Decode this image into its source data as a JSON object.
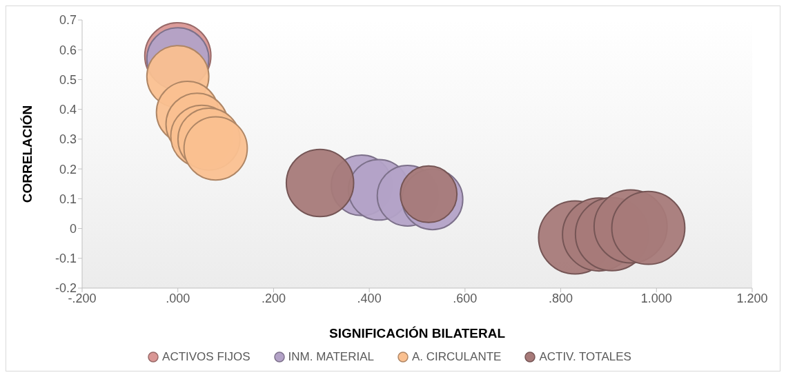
{
  "chart_data": {
    "type": "bubble",
    "xlabel": "SIGNIFICACIÓN BILATERAL",
    "ylabel": "CORRELACIÓN",
    "xlim": [
      -0.2,
      1.2
    ],
    "xticks": [
      {
        "value": -0.2,
        "label": "-.200"
      },
      {
        "value": 0,
        "label": ".000"
      },
      {
        "value": 0.2,
        "label": ".200"
      },
      {
        "value": 0.4,
        "label": ".400"
      },
      {
        "value": 0.6,
        "label": ".600"
      },
      {
        "value": 0.8,
        "label": ".800"
      },
      {
        "value": 1,
        "label": "1.000"
      },
      {
        "value": 1.2,
        "label": "1.200"
      }
    ],
    "ylim": [
      -0.2,
      0.7
    ],
    "yticks": [
      -0.2,
      -0.1,
      0,
      0.1,
      0.2,
      0.3,
      0.4,
      0.5,
      0.6,
      0.7
    ],
    "grid": false,
    "legend": "bottom",
    "series": [
      {
        "name": "ACTIVOS FIJOS",
        "color": "#d99694",
        "x": [
          0.0
        ],
        "values": [
          0.58
        ],
        "sizes": [
          0.82
        ]
      },
      {
        "name": "INM. MATERIAL",
        "color": "#b3a2c7",
        "x": [
          0.0,
          0.384,
          0.42,
          0.48,
          0.532
        ],
        "values": [
          0.57,
          0.145,
          0.13,
          0.11,
          0.098
        ],
        "sizes": [
          0.72,
          0.69,
          0.69,
          0.69,
          0.69
        ]
      },
      {
        "name": "A. CIRCULANTE",
        "color": "#fac090",
        "x": [
          0.0,
          0.02,
          0.04,
          0.05,
          0.065,
          0.079
        ],
        "values": [
          0.51,
          0.39,
          0.35,
          0.31,
          0.3,
          0.269
        ],
        "sizes": [
          0.72,
          0.72,
          0.72,
          0.72,
          0.72,
          0.75
        ]
      },
      {
        "name": "ACTIV. TOTALES",
        "color": "#a77a79",
        "x": [
          0.297,
          0.524,
          0.83,
          0.88,
          0.907,
          0.946,
          0.983
        ],
        "values": [
          0.153,
          0.115,
          -0.03,
          -0.02,
          -0.019,
          0.007,
          0.002
        ],
        "sizes": [
          0.85,
          0.6,
          1,
          1,
          1,
          1,
          1
        ]
      }
    ]
  }
}
